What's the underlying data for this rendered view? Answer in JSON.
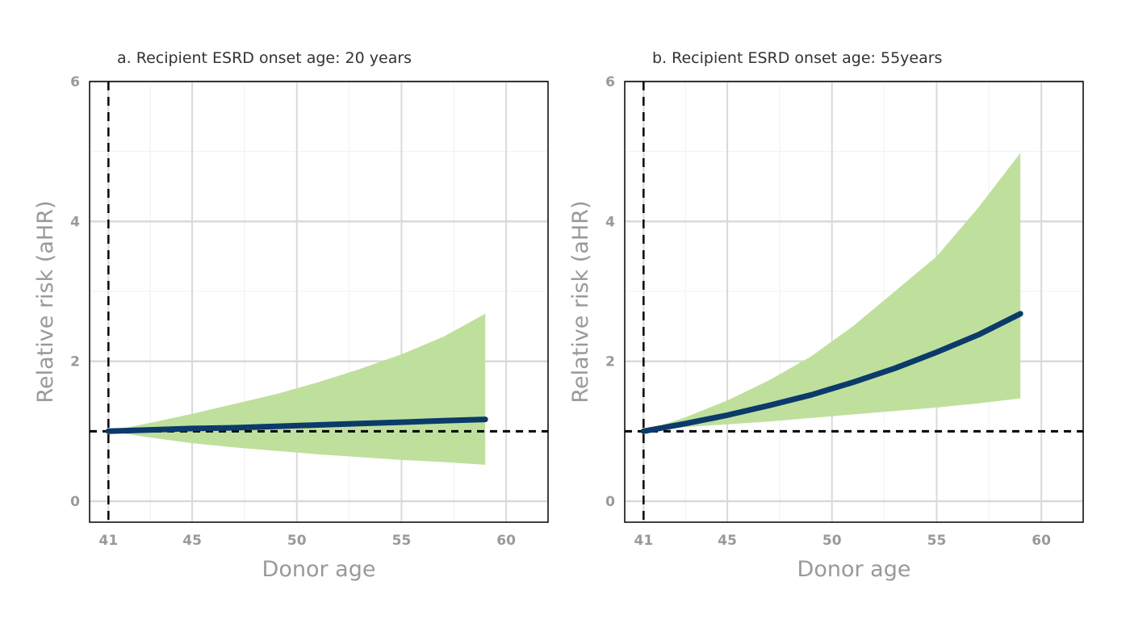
{
  "chart_data": [
    {
      "type": "line",
      "title": "a. Recipient ESRD onset age: 20 years",
      "xlabel": "Donor age",
      "ylabel": "Relative risk (aHR)",
      "xlim": [
        40.1,
        62.0
      ],
      "ylim": [
        -0.3,
        6.0
      ],
      "x_ticks": [
        41,
        45,
        50,
        55,
        60
      ],
      "y_ticks": [
        0,
        2,
        4,
        6
      ],
      "grid": true,
      "reference_lines": {
        "x": 41,
        "y": 1
      },
      "colors": {
        "line": "#0b3a6b",
        "band": "#bfe09c",
        "reference": "#000000",
        "grid_major": "#d9d9d9",
        "grid_minor": "#f0f0f0"
      },
      "series": [
        {
          "x": [
            41,
            43,
            45,
            47,
            49,
            51,
            53,
            55,
            57,
            59
          ],
          "y": [
            1.0,
            1.02,
            1.04,
            1.05,
            1.07,
            1.09,
            1.11,
            1.13,
            1.15,
            1.17
          ],
          "lower": [
            1.0,
            0.91,
            0.83,
            0.77,
            0.72,
            0.67,
            0.63,
            0.59,
            0.56,
            0.52
          ],
          "upper": [
            1.0,
            1.12,
            1.25,
            1.39,
            1.53,
            1.7,
            1.89,
            2.1,
            2.35,
            2.68
          ]
        }
      ]
    },
    {
      "type": "line",
      "title": "b. Recipient ESRD onset age: 55years",
      "xlabel": "Donor age",
      "ylabel": "Relative risk (aHR)",
      "xlim": [
        40.1,
        62.0
      ],
      "ylim": [
        -0.3,
        6.0
      ],
      "x_ticks": [
        41,
        45,
        50,
        55,
        60
      ],
      "y_ticks": [
        0,
        2,
        4,
        6
      ],
      "grid": true,
      "reference_lines": {
        "x": 41,
        "y": 1
      },
      "colors": {
        "line": "#0b3a6b",
        "band": "#bfe09c",
        "reference": "#000000",
        "grid_major": "#d9d9d9",
        "grid_minor": "#f0f0f0"
      },
      "series": [
        {
          "x": [
            41,
            43,
            45,
            47,
            49,
            51,
            53,
            55,
            57,
            59
          ],
          "y": [
            1.0,
            1.11,
            1.23,
            1.37,
            1.52,
            1.7,
            1.9,
            2.13,
            2.38,
            2.68
          ],
          "lower": [
            1.0,
            1.06,
            1.1,
            1.14,
            1.19,
            1.24,
            1.29,
            1.34,
            1.4,
            1.47
          ],
          "upper": [
            1.0,
            1.2,
            1.44,
            1.73,
            2.07,
            2.5,
            3.0,
            3.5,
            4.2,
            4.98
          ]
        }
      ]
    }
  ]
}
